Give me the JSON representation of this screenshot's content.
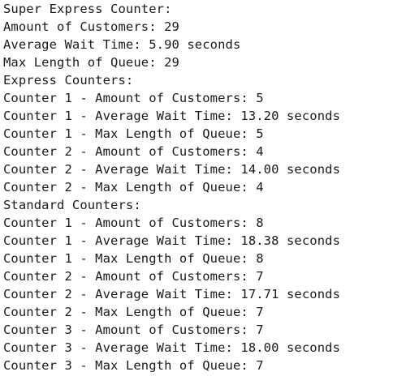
{
  "output": {
    "lines": [
      "Super Express Counter:",
      "Amount of Customers: 29",
      "Average Wait Time: 5.90 seconds",
      "Max Length of Queue: 29",
      "Express Counters:",
      "Counter 1 - Amount of Customers: 5",
      "Counter 1 - Average Wait Time: 13.20 seconds",
      "Counter 1 - Max Length of Queue: 5",
      "Counter 2 - Amount of Customers: 4",
      "Counter 2 - Average Wait Time: 14.00 seconds",
      "Counter 2 - Max Length of Queue: 4",
      "Standard Counters:",
      "Counter 1 - Amount of Customers: 8",
      "Counter 1 - Average Wait Time: 18.38 seconds",
      "Counter 1 - Max Length of Queue: 8",
      "Counter 2 - Amount of Customers: 7",
      "Counter 2 - Average Wait Time: 17.71 seconds",
      "Counter 2 - Max Length of Queue: 7",
      "Counter 3 - Amount of Customers: 7",
      "Counter 3 - Average Wait Time: 18.00 seconds",
      "Counter 3 - Max Length of Queue: 7"
    ]
  }
}
